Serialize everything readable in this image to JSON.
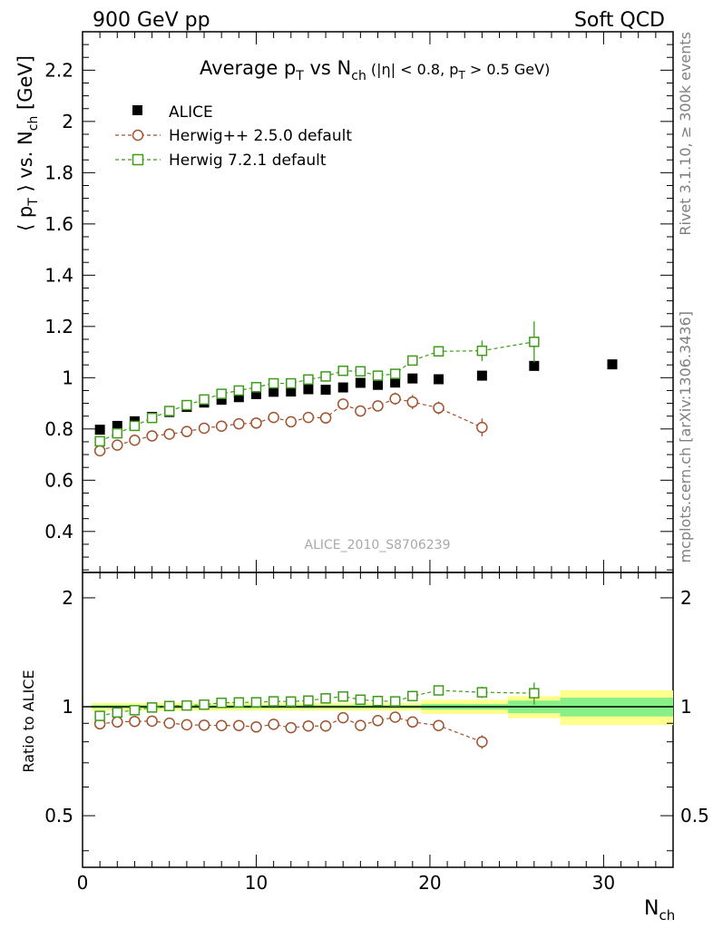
{
  "header": {
    "left": "900 GeV pp",
    "right": "Soft QCD"
  },
  "side_labels": {
    "rivet": "Rivet 3.1.10, ≥ 300k events",
    "mcplots": "mcplots.cern.ch [arXiv:1306.3436]"
  },
  "watermark": "ALICE_2010_S8706239",
  "colors": {
    "alice": "#000000",
    "herwig25": "#a0522d",
    "herwig72": "#3e9b1b",
    "band_inner": "#88f088",
    "band_outer": "#ffff8c"
  },
  "chart_data": {
    "type": "scatter",
    "title": {
      "main": "Average p",
      "sub1": "T",
      "mid": " vs N",
      "sub2": "ch",
      "cond_a": " (|η| < 0.8, p",
      "cond_sub": "T",
      "cond_b": " > 0.5 GeV)"
    },
    "ylabel": {
      "a": "⟨ p",
      "sub": "T",
      "b": " ⟩ vs. N",
      "sub2": "ch",
      "c": " [GeV]"
    },
    "xlabel": {
      "main": "N",
      "sub": "ch"
    },
    "ratio_ylabel": "Ratio to ALICE",
    "xlim": [
      0,
      34
    ],
    "ylim": [
      0.24,
      2.35
    ],
    "ratio_ylim": [
      0.36,
      2.35
    ],
    "x_ticks": [
      "0",
      "10",
      "20",
      "30"
    ],
    "y_ticks": [
      "0.4",
      "0.6",
      "0.8",
      "1",
      "1.2",
      "1.4",
      "1.6",
      "1.8",
      "2",
      "2.2"
    ],
    "ratio_ticks": [
      "0.5",
      "1",
      "2"
    ],
    "legend": [
      "ALICE",
      "Herwig++ 2.5.0 default",
      "Herwig 7.2.1 default"
    ],
    "series": [
      {
        "name": "ALICE",
        "marker": "square-filled",
        "x": [
          1,
          2,
          3,
          4,
          5,
          6,
          7,
          8,
          9,
          10,
          11,
          12,
          13,
          14,
          15,
          16,
          17,
          18,
          19,
          20.5,
          23,
          26,
          30.5
        ],
        "y": [
          0.797,
          0.812,
          0.83,
          0.847,
          0.866,
          0.886,
          0.903,
          0.914,
          0.924,
          0.936,
          0.945,
          0.946,
          0.955,
          0.953,
          0.962,
          0.98,
          0.972,
          0.981,
          0.997,
          0.994,
          1.008,
          1.046,
          1.052
        ],
        "err": [
          0,
          0,
          0,
          0,
          0,
          0,
          0,
          0,
          0,
          0,
          0,
          0,
          0,
          0,
          0,
          0,
          0,
          0,
          0,
          0,
          0,
          0,
          0
        ]
      },
      {
        "name": "Herwig++ 2.5.0 default",
        "marker": "circle-open",
        "x": [
          1,
          2,
          3,
          4,
          5,
          6,
          7,
          8,
          9,
          10,
          11,
          12,
          13,
          14,
          15,
          16,
          17,
          18,
          19,
          20.5,
          23
        ],
        "y": [
          0.715,
          0.737,
          0.756,
          0.773,
          0.78,
          0.79,
          0.803,
          0.811,
          0.82,
          0.823,
          0.845,
          0.828,
          0.845,
          0.843,
          0.897,
          0.87,
          0.89,
          0.918,
          0.905,
          0.882,
          0.806
        ],
        "err": [
          0.01,
          0.008,
          0.008,
          0.008,
          0.008,
          0.008,
          0.009,
          0.009,
          0.01,
          0.01,
          0.011,
          0.011,
          0.012,
          0.013,
          0.014,
          0.016,
          0.02,
          0.024,
          0.028,
          0.025,
          0.035
        ]
      },
      {
        "name": "Herwig 7.2.1 default",
        "marker": "square-open",
        "x": [
          1,
          2,
          3,
          4,
          5,
          6,
          7,
          8,
          9,
          10,
          11,
          12,
          13,
          14,
          15,
          16,
          17,
          18,
          19,
          20.5,
          23,
          26
        ],
        "y": [
          0.752,
          0.783,
          0.812,
          0.843,
          0.87,
          0.893,
          0.915,
          0.937,
          0.95,
          0.963,
          0.978,
          0.978,
          0.993,
          1.005,
          1.027,
          1.025,
          1.008,
          1.015,
          1.067,
          1.103,
          1.105,
          1.14
        ],
        "err": [
          0.006,
          0.006,
          0.006,
          0.007,
          0.007,
          0.007,
          0.008,
          0.008,
          0.009,
          0.009,
          0.01,
          0.01,
          0.011,
          0.012,
          0.013,
          0.014,
          0.015,
          0.017,
          0.02,
          0.018,
          0.04,
          0.08
        ]
      }
    ],
    "ratio_band": [
      {
        "x0": 0.5,
        "x1": 19.5,
        "inner": 0.01,
        "outer": 0.025
      },
      {
        "x0": 19.5,
        "x1": 24.5,
        "inner": 0.018,
        "outer": 0.045
      },
      {
        "x0": 24.5,
        "x1": 27.5,
        "inner": 0.04,
        "outer": 0.07
      },
      {
        "x0": 27.5,
        "x1": 34,
        "inner": 0.06,
        "outer": 0.11
      }
    ]
  }
}
